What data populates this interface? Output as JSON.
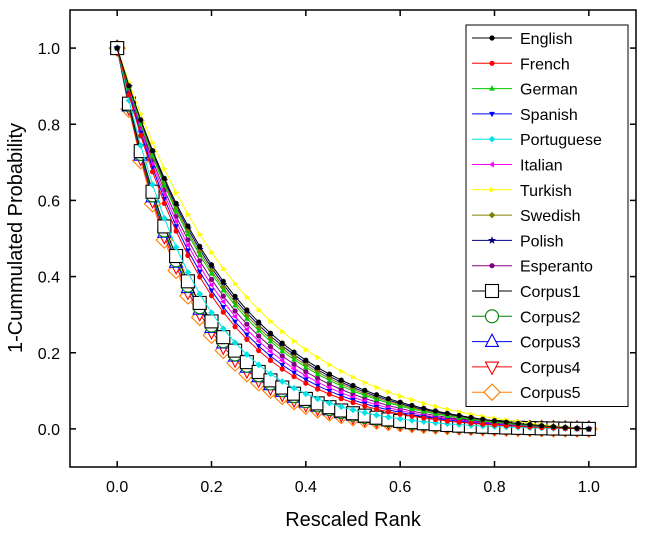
{
  "chart_data": {
    "type": "line",
    "title": "",
    "xlabel": "Rescaled Rank",
    "ylabel": "1-Cummulated Probability",
    "xlim": [
      -0.1,
      1.1
    ],
    "ylim": [
      -0.1,
      1.1
    ],
    "xticks": [
      "0.0",
      "0.2",
      "0.4",
      "0.6",
      "0.8",
      "1.0"
    ],
    "yticks": [
      "0.0",
      "0.2",
      "0.4",
      "0.6",
      "0.8",
      "1.0"
    ],
    "legend_position": "top-right",
    "grid": false,
    "series": [
      {
        "name": "English",
        "color": "#000000",
        "marker": "dot",
        "n": 40,
        "k": 4.1
      },
      {
        "name": "French",
        "color": "#ff0000",
        "marker": "dot",
        "n": 40,
        "k": 5.2
      },
      {
        "name": "German",
        "color": "#00cc00",
        "marker": "triangle-up",
        "n": 40,
        "k": 4.4
      },
      {
        "name": "Spanish",
        "color": "#0000ff",
        "marker": "triangle-down",
        "n": 40,
        "k": 5.0
      },
      {
        "name": "Portuguese",
        "color": "#00e5e5",
        "marker": "diamond",
        "n": 40,
        "k": 5.9
      },
      {
        "name": "Italian",
        "color": "#ff00ff",
        "marker": "triangle-left",
        "n": 40,
        "k": 4.8
      },
      {
        "name": "Turkish",
        "color": "#ffff00",
        "marker": "triangle-right",
        "n": 40,
        "k": 3.7
      },
      {
        "name": "Swedish",
        "color": "#808000",
        "marker": "diamond",
        "n": 40,
        "k": 4.3
      },
      {
        "name": "Polish",
        "color": "#000080",
        "marker": "star",
        "n": 40,
        "k": 4.2
      },
      {
        "name": "Esperanto",
        "color": "#800080",
        "marker": "dot",
        "n": 40,
        "k": 4.6
      },
      {
        "name": "Corpus1",
        "color": "#000000",
        "marker": "square-open",
        "n": 40,
        "k": 6.3
      },
      {
        "name": "Corpus2",
        "color": "#008000",
        "marker": "circle-open",
        "n": 40,
        "k": 6.5
      },
      {
        "name": "Corpus3",
        "color": "#0000ff",
        "marker": "triangle-up-open",
        "n": 40,
        "k": 6.6
      },
      {
        "name": "Corpus4",
        "color": "#ff0000",
        "marker": "triangle-down-open",
        "n": 40,
        "k": 6.8
      },
      {
        "name": "Corpus5",
        "color": "#ff8000",
        "marker": "diamond-open",
        "n": 40,
        "k": 7.0
      }
    ]
  }
}
